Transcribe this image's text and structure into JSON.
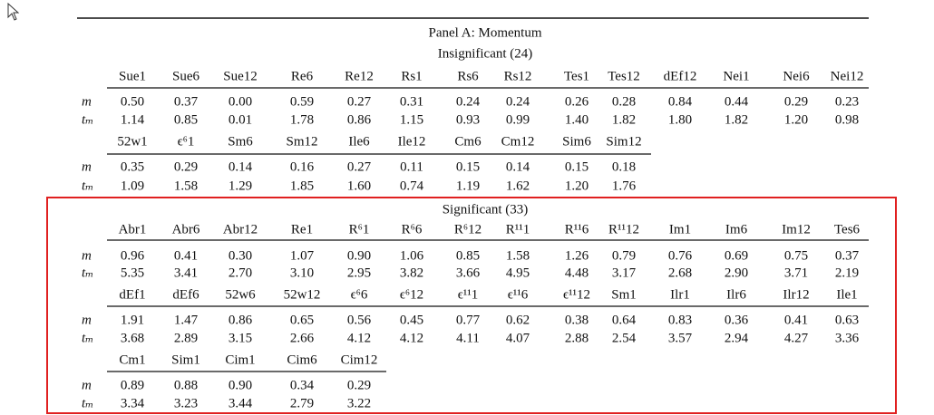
{
  "panel_title": "Panel A: Momentum",
  "groups": [
    {
      "title": "Insignificant (24)",
      "blocks": [
        {
          "headers": [
            "Sue1",
            "Sue6",
            "Sue12",
            "Re6",
            "Re12",
            "Rs1",
            "Rs6",
            "Rs12",
            "Tes1",
            "Tes12",
            "dEf12",
            "Nei1",
            "Nei6",
            "Nei12"
          ],
          "rows": [
            {
              "label": "m",
              "values": [
                "0.50",
                "0.37",
                "0.00",
                "0.59",
                "0.27",
                "0.31",
                "0.24",
                "0.24",
                "0.26",
                "0.28",
                "0.84",
                "0.44",
                "0.29",
                "0.23"
              ]
            },
            {
              "label": "tₘ",
              "values": [
                "1.14",
                "0.85",
                "0.01",
                "1.78",
                "0.86",
                "1.15",
                "0.93",
                "0.99",
                "1.40",
                "1.82",
                "1.80",
                "1.82",
                "1.20",
                "0.98"
              ]
            }
          ]
        },
        {
          "headers": [
            "52w1",
            "ϵ⁶1",
            "Sm6",
            "Sm12",
            "Ile6",
            "Ile12",
            "Cm6",
            "Cm12",
            "Sim6",
            "Sim12"
          ],
          "rows": [
            {
              "label": "m",
              "values": [
                "0.35",
                "0.29",
                "0.14",
                "0.16",
                "0.27",
                "0.11",
                "0.15",
                "0.14",
                "0.15",
                "0.18"
              ]
            },
            {
              "label": "tₘ",
              "values": [
                "1.09",
                "1.58",
                "1.29",
                "1.85",
                "1.60",
                "0.74",
                "1.19",
                "1.62",
                "1.20",
                "1.76"
              ]
            }
          ]
        }
      ]
    },
    {
      "title": "Significant (33)",
      "blocks": [
        {
          "headers": [
            "Abr1",
            "Abr6",
            "Abr12",
            "Re1",
            "R⁶1",
            "R⁶6",
            "R⁶12",
            "R¹¹1",
            "R¹¹6",
            "R¹¹12",
            "Im1",
            "Im6",
            "Im12",
            "Tes6"
          ],
          "rows": [
            {
              "label": "m",
              "values": [
                "0.96",
                "0.41",
                "0.30",
                "1.07",
                "0.90",
                "1.06",
                "0.85",
                "1.58",
                "1.26",
                "0.79",
                "0.76",
                "0.69",
                "0.75",
                "0.37"
              ]
            },
            {
              "label": "tₘ",
              "values": [
                "5.35",
                "3.41",
                "2.70",
                "3.10",
                "2.95",
                "3.82",
                "3.66",
                "4.95",
                "4.48",
                "3.17",
                "2.68",
                "2.90",
                "3.71",
                "2.19"
              ]
            }
          ]
        },
        {
          "headers": [
            "dEf1",
            "dEf6",
            "52w6",
            "52w12",
            "ϵ⁶6",
            "ϵ⁶12",
            "ϵ¹¹1",
            "ϵ¹¹6",
            "ϵ¹¹12",
            "Sm1",
            "Ilr1",
            "Ilr6",
            "Ilr12",
            "Ile1"
          ],
          "rows": [
            {
              "label": "m",
              "values": [
                "1.91",
                "1.47",
                "0.86",
                "0.65",
                "0.56",
                "0.45",
                "0.77",
                "0.62",
                "0.38",
                "0.64",
                "0.83",
                "0.36",
                "0.41",
                "0.63"
              ]
            },
            {
              "label": "tₘ",
              "values": [
                "3.68",
                "2.89",
                "3.15",
                "2.66",
                "4.12",
                "4.12",
                "4.11",
                "4.07",
                "2.88",
                "2.54",
                "3.57",
                "2.94",
                "4.27",
                "3.36"
              ]
            }
          ]
        },
        {
          "headers": [
            "Cm1",
            "Sim1",
            "Cim1",
            "Cim6",
            "Cim12"
          ],
          "rows": [
            {
              "label": "m",
              "values": [
                "0.89",
                "0.88",
                "0.90",
                "0.34",
                "0.29"
              ]
            },
            {
              "label": "tₘ",
              "values": [
                "3.34",
                "3.23",
                "3.44",
                "2.79",
                "3.22"
              ]
            }
          ]
        }
      ]
    }
  ]
}
